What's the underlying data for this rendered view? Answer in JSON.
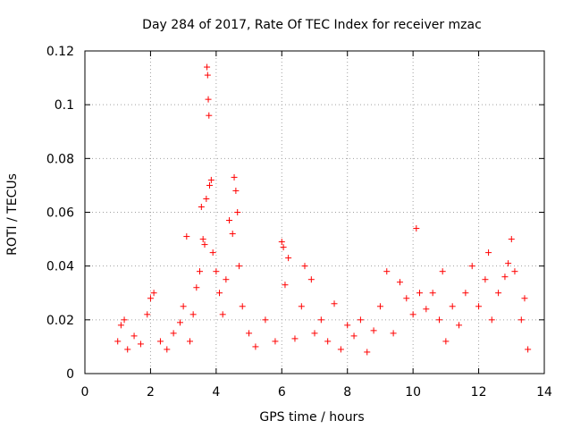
{
  "chart_data": {
    "type": "scatter",
    "title": "Day 284 of 2017, Rate Of TEC Index for receiver mzac",
    "xlabel": "GPS time / hours",
    "ylabel": "ROTI / TECUs",
    "xlim": [
      0,
      14
    ],
    "ylim": [
      0,
      0.12
    ],
    "x_ticks": [
      0,
      2,
      4,
      6,
      8,
      10,
      12,
      14
    ],
    "x_tick_labels": [
      "0",
      "2",
      "4",
      "6",
      "8",
      "10",
      "12",
      "14"
    ],
    "y_ticks": [
      0,
      0.02,
      0.04,
      0.06,
      0.08,
      0.1,
      0.12
    ],
    "y_tick_labels": [
      "0",
      "0.02",
      "0.04",
      "0.06",
      "0.08",
      "0.1",
      "0.12"
    ],
    "grid": true,
    "marker": "+",
    "color": "#ff0000",
    "series": [
      {
        "name": "ROTI",
        "points": [
          [
            1.0,
            0.012
          ],
          [
            1.1,
            0.018
          ],
          [
            1.2,
            0.02
          ],
          [
            1.3,
            0.009
          ],
          [
            1.5,
            0.014
          ],
          [
            1.7,
            0.011
          ],
          [
            1.9,
            0.022
          ],
          [
            2.0,
            0.028
          ],
          [
            2.1,
            0.03
          ],
          [
            2.3,
            0.012
          ],
          [
            2.5,
            0.009
          ],
          [
            2.7,
            0.015
          ],
          [
            2.9,
            0.019
          ],
          [
            3.0,
            0.025
          ],
          [
            3.1,
            0.051
          ],
          [
            3.2,
            0.012
          ],
          [
            3.3,
            0.022
          ],
          [
            3.4,
            0.032
          ],
          [
            3.5,
            0.038
          ],
          [
            3.55,
            0.062
          ],
          [
            3.6,
            0.05
          ],
          [
            3.65,
            0.048
          ],
          [
            3.7,
            0.065
          ],
          [
            3.72,
            0.114
          ],
          [
            3.74,
            0.111
          ],
          [
            3.76,
            0.102
          ],
          [
            3.78,
            0.096
          ],
          [
            3.8,
            0.07
          ],
          [
            3.85,
            0.072
          ],
          [
            3.9,
            0.045
          ],
          [
            4.0,
            0.038
          ],
          [
            4.1,
            0.03
          ],
          [
            4.2,
            0.022
          ],
          [
            4.3,
            0.035
          ],
          [
            4.4,
            0.057
          ],
          [
            4.5,
            0.052
          ],
          [
            4.55,
            0.073
          ],
          [
            4.6,
            0.068
          ],
          [
            4.65,
            0.06
          ],
          [
            4.7,
            0.04
          ],
          [
            4.8,
            0.025
          ],
          [
            5.0,
            0.015
          ],
          [
            5.2,
            0.01
          ],
          [
            5.5,
            0.02
          ],
          [
            5.8,
            0.012
          ],
          [
            6.0,
            0.049
          ],
          [
            6.05,
            0.047
          ],
          [
            6.1,
            0.033
          ],
          [
            6.2,
            0.043
          ],
          [
            6.4,
            0.013
          ],
          [
            6.6,
            0.025
          ],
          [
            6.7,
            0.04
          ],
          [
            6.9,
            0.035
          ],
          [
            7.0,
            0.015
          ],
          [
            7.2,
            0.02
          ],
          [
            7.4,
            0.012
          ],
          [
            7.6,
            0.026
          ],
          [
            7.8,
            0.009
          ],
          [
            8.0,
            0.018
          ],
          [
            8.2,
            0.014
          ],
          [
            8.4,
            0.02
          ],
          [
            8.6,
            0.008
          ],
          [
            8.8,
            0.016
          ],
          [
            9.0,
            0.025
          ],
          [
            9.2,
            0.038
          ],
          [
            9.4,
            0.015
          ],
          [
            9.6,
            0.034
          ],
          [
            9.8,
            0.028
          ],
          [
            10.0,
            0.022
          ],
          [
            10.1,
            0.054
          ],
          [
            10.2,
            0.03
          ],
          [
            10.4,
            0.024
          ],
          [
            10.6,
            0.03
          ],
          [
            10.8,
            0.02
          ],
          [
            10.9,
            0.038
          ],
          [
            11.0,
            0.012
          ],
          [
            11.2,
            0.025
          ],
          [
            11.4,
            0.018
          ],
          [
            11.6,
            0.03
          ],
          [
            11.8,
            0.04
          ],
          [
            12.0,
            0.025
          ],
          [
            12.2,
            0.035
          ],
          [
            12.3,
            0.045
          ],
          [
            12.4,
            0.02
          ],
          [
            12.6,
            0.03
          ],
          [
            12.8,
            0.036
          ],
          [
            12.9,
            0.041
          ],
          [
            13.0,
            0.05
          ],
          [
            13.1,
            0.038
          ],
          [
            13.3,
            0.02
          ],
          [
            13.4,
            0.028
          ],
          [
            13.5,
            0.009
          ]
        ]
      }
    ]
  }
}
